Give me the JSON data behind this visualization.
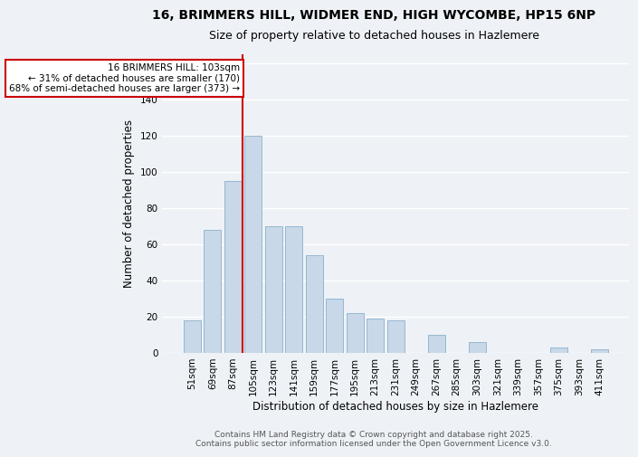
{
  "title_line1": "16, BRIMMERS HILL, WIDMER END, HIGH WYCOMBE, HP15 6NP",
  "title_line2": "Size of property relative to detached houses in Hazlemere",
  "xlabel": "Distribution of detached houses by size in Hazlemere",
  "ylabel": "Number of detached properties",
  "bar_color": "#c8d8e8",
  "bar_edge_color": "#8ab0cc",
  "vline_color": "#cc0000",
  "annotation_text": "16 BRIMMERS HILL: 103sqm\n← 31% of detached houses are smaller (170)\n68% of semi-detached houses are larger (373) →",
  "annotation_box_color": "#ffffff",
  "annotation_box_edge_color": "#cc0000",
  "footer_text": "Contains HM Land Registry data © Crown copyright and database right 2025.\nContains public sector information licensed under the Open Government Licence v3.0.",
  "categories": [
    "51sqm",
    "69sqm",
    "87sqm",
    "105sqm",
    "123sqm",
    "141sqm",
    "159sqm",
    "177sqm",
    "195sqm",
    "213sqm",
    "231sqm",
    "249sqm",
    "267sqm",
    "285sqm",
    "303sqm",
    "321sqm",
    "339sqm",
    "357sqm",
    "375sqm",
    "393sqm",
    "411sqm"
  ],
  "values": [
    18,
    68,
    95,
    120,
    70,
    70,
    54,
    30,
    22,
    19,
    18,
    0,
    10,
    0,
    6,
    0,
    0,
    0,
    3,
    0,
    2
  ],
  "vline_index": 2.5,
  "ylim": [
    0,
    165
  ],
  "yticks": [
    0,
    20,
    40,
    60,
    80,
    100,
    120,
    140,
    160
  ],
  "background_color": "#eef2f7",
  "grid_color": "#ffffff",
  "title_fontsize": 10,
  "subtitle_fontsize": 9,
  "axis_label_fontsize": 8.5,
  "tick_fontsize": 7.5,
  "annot_fontsize": 7.5,
  "footer_fontsize": 6.5
}
